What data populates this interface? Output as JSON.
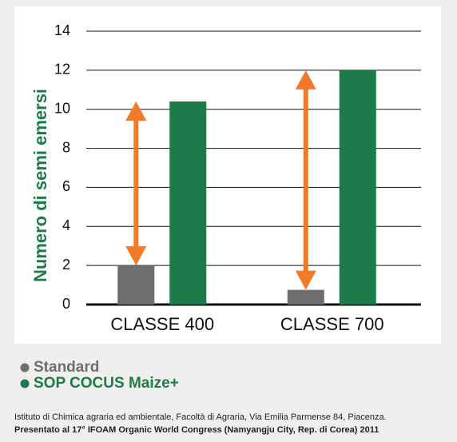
{
  "chart_data": {
    "type": "bar",
    "y_label": "Numero di semi emersi",
    "categories": [
      "CLASSE 400",
      "CLASSE 700"
    ],
    "series": [
      {
        "name": "Standard",
        "color": "#6e6e6e",
        "values": [
          2,
          0.75
        ]
      },
      {
        "name": "SOP COCUS Maize+",
        "color": "#1f7a4a",
        "values": [
          10.4,
          12
        ]
      }
    ],
    "ylim": [
      0,
      14
    ],
    "yticks": [
      0,
      2,
      4,
      6,
      8,
      10,
      12,
      14
    ],
    "grid": true,
    "arrow_color": "#f07a28",
    "notes": [
      "Istituto di Chimica agraria ed ambientale, Facoltà di Agraria, Via Emilia Parmense 84, Piacenza.",
      "Presentato al 17° IFOAM Organic World Congress (Namyangju City, Rep. di Corea) 2011"
    ]
  }
}
